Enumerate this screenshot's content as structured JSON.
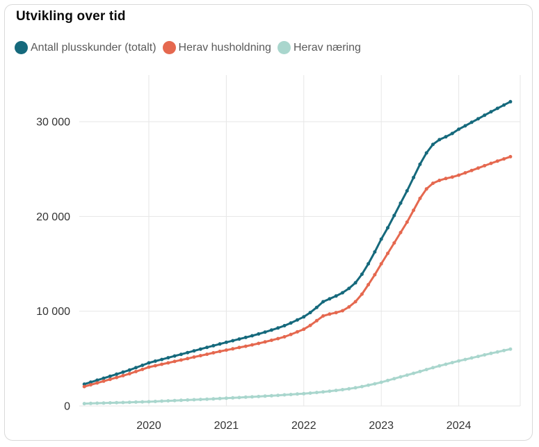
{
  "card": {
    "title": "Utvikling over tid"
  },
  "colors": {
    "total": "#15697c",
    "husholdning": "#e5684f",
    "naering": "#a9d6cd",
    "grid": "#e6e6e6",
    "axis_text": "#333333",
    "legend_text": "#5a5a5a",
    "card_border": "#d9d9d9",
    "background": "#ffffff"
  },
  "chart_data": {
    "type": "line",
    "title": "Utvikling over tid",
    "xlabel": "",
    "ylabel": "",
    "grid": true,
    "legend_position": "top",
    "markers": "circle-monthly",
    "x_frequency": "monthly",
    "x_monthly_start": "2019-03",
    "x_monthly_end": "2024-09",
    "ylim": [
      0,
      35000
    ],
    "y_ticks": [
      {
        "value": 0,
        "label": "0"
      },
      {
        "value": 10000,
        "label": "10 000"
      },
      {
        "value": 20000,
        "label": "20 000"
      },
      {
        "value": 30000,
        "label": "30 000"
      }
    ],
    "x_ticks": [
      {
        "label": "2020"
      },
      {
        "label": "2021"
      },
      {
        "label": "2022"
      },
      {
        "label": "2023"
      },
      {
        "label": "2024"
      }
    ],
    "series": [
      {
        "name": "Antall plusskunder (totalt)",
        "color": "#15697c",
        "values": [
          2300,
          2510,
          2720,
          2930,
          3140,
          3350,
          3570,
          3790,
          4040,
          4290,
          4550,
          4730,
          4910,
          5090,
          5270,
          5450,
          5630,
          5820,
          6000,
          6180,
          6360,
          6545,
          6720,
          6890,
          7060,
          7230,
          7410,
          7600,
          7800,
          8010,
          8230,
          8470,
          8760,
          9080,
          9400,
          9860,
          10400,
          11000,
          11300,
          11600,
          11950,
          12400,
          13000,
          13900,
          15000,
          16250,
          17600,
          18800,
          20100,
          21400,
          22700,
          24100,
          25500,
          26700,
          27600,
          28100,
          28400,
          28750,
          29200,
          29560,
          29930,
          30300,
          30670,
          31040,
          31400,
          31750,
          32100
        ]
      },
      {
        "name": "Herav husholdning",
        "color": "#e5684f",
        "values": [
          2050,
          2240,
          2430,
          2620,
          2810,
          3000,
          3200,
          3400,
          3630,
          3860,
          4100,
          4250,
          4400,
          4550,
          4700,
          4850,
          5000,
          5160,
          5310,
          5460,
          5610,
          5760,
          5900,
          6030,
          6170,
          6300,
          6450,
          6600,
          6760,
          6930,
          7110,
          7300,
          7550,
          7820,
          8100,
          8500,
          9000,
          9500,
          9700,
          9850,
          10050,
          10450,
          11000,
          11800,
          12800,
          13850,
          15000,
          16100,
          17200,
          18300,
          19400,
          20650,
          21900,
          22900,
          23500,
          23800,
          24000,
          24150,
          24350,
          24600,
          24850,
          25100,
          25350,
          25600,
          25840,
          26070,
          26300
        ]
      },
      {
        "name": "Herav næring",
        "color": "#a9d6cd",
        "values": [
          250,
          270,
          290,
          310,
          330,
          350,
          370,
          390,
          410,
          430,
          450,
          480,
          510,
          540,
          570,
          600,
          630,
          660,
          690,
          720,
          750,
          785,
          820,
          855,
          890,
          930,
          960,
          1000,
          1040,
          1080,
          1120,
          1170,
          1210,
          1260,
          1300,
          1360,
          1420,
          1490,
          1560,
          1640,
          1720,
          1810,
          1920,
          2050,
          2190,
          2340,
          2500,
          2690,
          2880,
          3070,
          3260,
          3450,
          3640,
          3840,
          4040,
          4230,
          4400,
          4580,
          4750,
          4910,
          5070,
          5230,
          5390,
          5550,
          5700,
          5850,
          6000
        ]
      }
    ]
  }
}
